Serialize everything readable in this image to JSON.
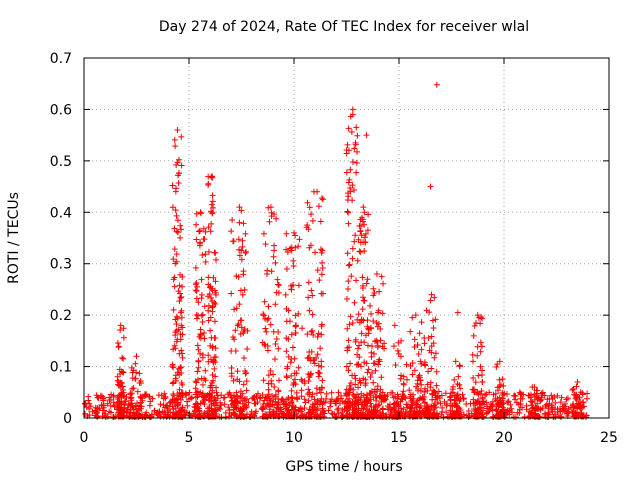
{
  "colors": {
    "series": "#ff0000",
    "grid": "#a0a0a0",
    "axis": "#000000",
    "background": "#ffffff"
  },
  "chart_data": {
    "type": "scatter",
    "title": "Day 274 of 2024, Rate Of TEC Index for receiver wlal",
    "xlabel": "GPS time / hours",
    "ylabel": "ROTI / TECUs",
    "xlim": [
      0,
      25
    ],
    "ylim": [
      0,
      0.7
    ],
    "x_ticks": [
      0,
      5,
      10,
      15,
      20,
      25
    ],
    "x_tick_labels": [
      "0",
      "5",
      "10",
      "15",
      "20",
      "25"
    ],
    "y_ticks": [
      0,
      0.1,
      0.2,
      0.3,
      0.4,
      0.5,
      0.6,
      0.7
    ],
    "y_tick_labels": [
      "0",
      "0.1",
      "0.2",
      "0.3",
      "0.4",
      "0.5",
      "0.6",
      "0.7"
    ],
    "grid": true,
    "marker": "plus",
    "baseline_band": {
      "x_range": [
        0,
        24
      ],
      "typical_max": 0.05
    },
    "dense_clusters": [
      {
        "x": [
          1.6,
          1.9
        ],
        "y_max": 0.18
      },
      {
        "x": [
          2.2,
          2.8
        ],
        "y_max": 0.12
      },
      {
        "x": [
          4.2,
          4.7
        ],
        "y_max": 0.56
      },
      {
        "x": [
          5.3,
          5.8
        ],
        "y_max": 0.4
      },
      {
        "x": [
          5.9,
          6.3
        ],
        "y_max": 0.47
      },
      {
        "x": [
          7.0,
          7.8
        ],
        "y_max": 0.41
      },
      {
        "x": [
          8.5,
          9.3
        ],
        "y_max": 0.41
      },
      {
        "x": [
          9.6,
          10.4
        ],
        "y_max": 0.36
      },
      {
        "x": [
          10.5,
          11.4
        ],
        "y_max": 0.44
      },
      {
        "x": [
          12.5,
          13.1
        ],
        "y_max": 0.6
      },
      {
        "x": [
          13.1,
          13.6
        ],
        "y_max": 0.4
      },
      {
        "x": [
          13.6,
          14.3
        ],
        "y_max": 0.28
      },
      {
        "x": [
          14.7,
          15.5
        ],
        "y_max": 0.15
      },
      {
        "x": [
          15.5,
          16.1
        ],
        "y_max": 0.2
      },
      {
        "x": [
          16.2,
          16.9
        ],
        "y_max": 0.24
      },
      {
        "x": [
          17.4,
          18.0
        ],
        "y_max": 0.11
      },
      {
        "x": [
          18.5,
          19.0
        ],
        "y_max": 0.2
      },
      {
        "x": [
          19.6,
          20.0
        ],
        "y_max": 0.11
      },
      {
        "x": [
          21.2,
          21.7
        ],
        "y_max": 0.06
      },
      {
        "x": [
          23.2,
          23.8
        ],
        "y_max": 0.07
      }
    ],
    "notable_points": [
      {
        "x": 16.8,
        "y": 0.648
      },
      {
        "x": 16.5,
        "y": 0.45
      },
      {
        "x": 13.45,
        "y": 0.55
      },
      {
        "x": 13.3,
        "y": 0.41
      },
      {
        "x": 17.8,
        "y": 0.205
      },
      {
        "x": 18.8,
        "y": 0.195
      },
      {
        "x": 14.8,
        "y": 0.18
      },
      {
        "x": 11.1,
        "y": 0.44
      },
      {
        "x": 12.8,
        "y": 0.59
      }
    ]
  }
}
